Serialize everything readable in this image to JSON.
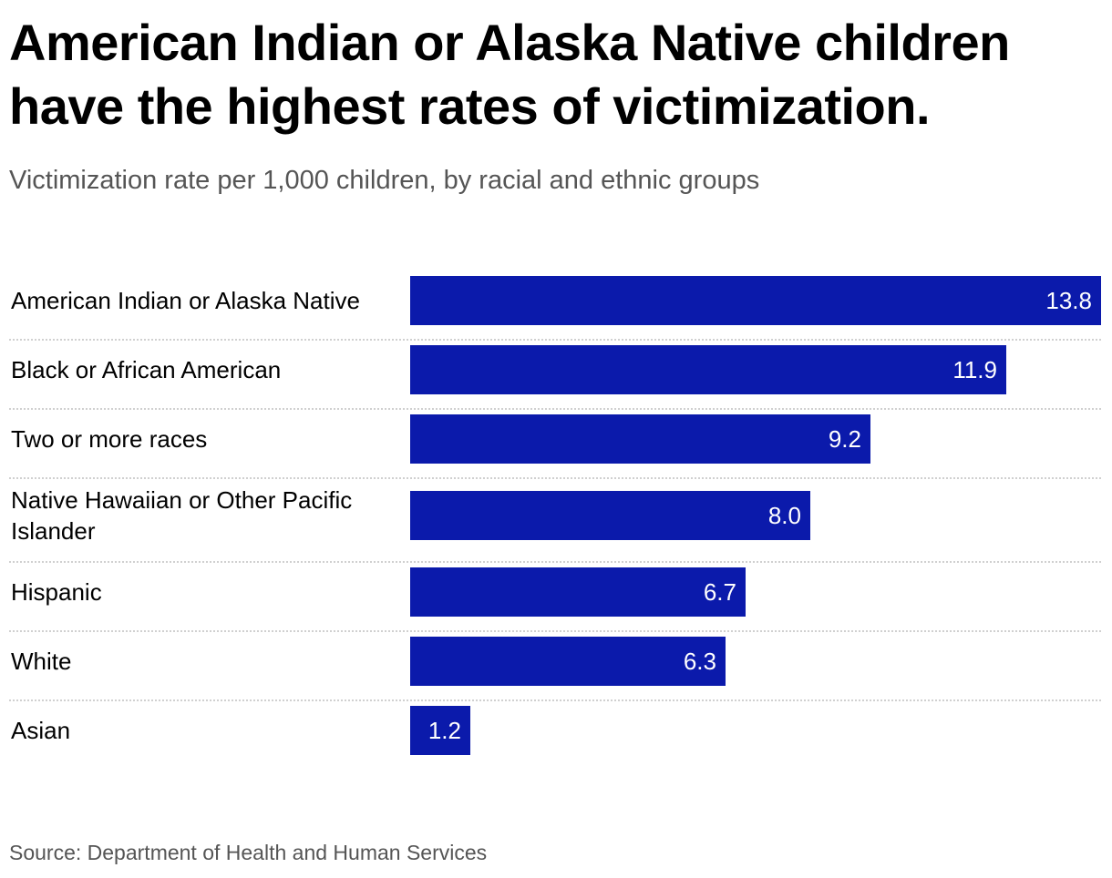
{
  "title": "American Indian or Alaska Native children have the highest rates of victimization.",
  "subtitle": "Victimization rate per 1,000 children, by racial and ethnic groups",
  "source": "Source: Department of Health and Human Services",
  "colors": {
    "bar": "#0b1aab",
    "value_text": "#ffffff",
    "separator": "#d0d0d0"
  },
  "chart_data": {
    "type": "bar",
    "orientation": "horizontal",
    "title": "American Indian or Alaska Native children have the highest rates of victimization.",
    "subtitle": "Victimization rate per 1,000 children, by racial and ethnic groups",
    "xlabel": "",
    "ylabel": "",
    "xlim": [
      0,
      13.8
    ],
    "grid": false,
    "categories": [
      "American Indian or Alaska Native",
      "Black or African American",
      "Two or more races",
      "Native Hawaiian or Other Pacific Islander",
      "Hispanic",
      "White",
      "Asian"
    ],
    "values": [
      13.8,
      11.9,
      9.2,
      8.0,
      6.7,
      6.3,
      1.2
    ],
    "value_labels": [
      "13.8",
      "11.9",
      "9.2",
      "8.0",
      "6.7",
      "6.3",
      "1.2"
    ]
  }
}
